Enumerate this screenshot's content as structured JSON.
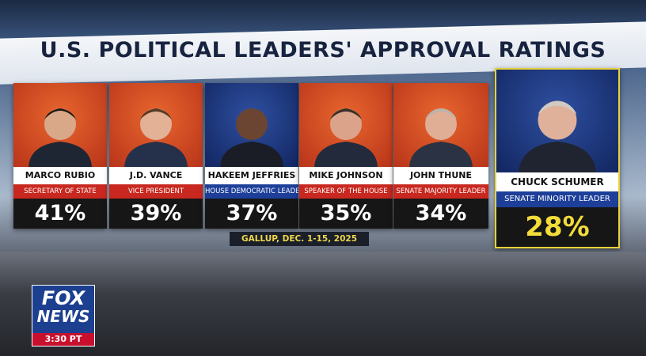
{
  "header": {
    "title": "U.S. POLITICAL LEADERS' APPROVAL RATINGS"
  },
  "cards": [
    {
      "name": "MARCO RUBIO",
      "role": "SECRETARY OF STATE",
      "approval": "41%"
    },
    {
      "name": "J.D. VANCE",
      "role": "VICE PRESIDENT",
      "approval": "39%"
    },
    {
      "name": "HAKEEM JEFFRIES",
      "role": "HOUSE DEMOCRATIC LEADER",
      "approval": "37%"
    },
    {
      "name": "MIKE JOHNSON",
      "role": "SPEAKER OF THE HOUSE",
      "approval": "35%"
    },
    {
      "name": "JOHN THUNE",
      "role": "SENATE MAJORITY LEADER",
      "approval": "34%"
    },
    {
      "name": "CHUCK SCHUMER",
      "role": "SENATE MINORITY LEADER",
      "approval": "28%"
    }
  ],
  "source": "GALLUP, DEC. 1-15, 2025",
  "logo": {
    "line1": "FOX",
    "line2": "NEWS",
    "time": "3:30 PT"
  }
}
